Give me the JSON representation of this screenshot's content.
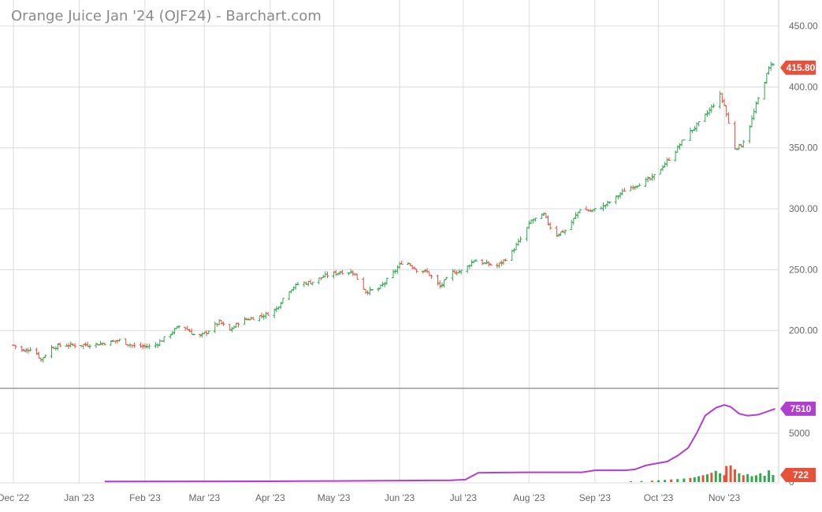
{
  "chart_data": {
    "type": "line",
    "title": "Orange Juice Jan '24 (OJF24) - Barchart.com",
    "price_panel": {
      "type": "ohlc",
      "ylim": [
        150,
        450
      ],
      "yticks": [
        "200.00",
        "250.00",
        "300.00",
        "350.00",
        "400.00",
        "450.00"
      ],
      "last_price": "415.80",
      "grid": true,
      "price_path": [
        [
          "2022-12-01",
          188
        ],
        [
          "2022-12-06",
          183
        ],
        [
          "2022-12-10",
          186
        ],
        [
          "2022-12-14",
          176
        ],
        [
          "2022-12-19",
          186
        ],
        [
          "2022-12-24",
          188
        ],
        [
          "2023-01-02",
          188
        ],
        [
          "2023-01-10",
          189
        ],
        [
          "2023-01-20",
          192
        ],
        [
          "2023-01-27",
          187
        ],
        [
          "2023-02-05",
          187
        ],
        [
          "2023-02-12",
          196
        ],
        [
          "2023-02-18",
          205
        ],
        [
          "2023-02-26",
          194
        ],
        [
          "2023-03-03",
          200
        ],
        [
          "2023-03-08",
          207
        ],
        [
          "2023-03-13",
          200
        ],
        [
          "2023-03-18",
          208
        ],
        [
          "2023-03-23",
          210
        ],
        [
          "2023-03-30",
          213
        ],
        [
          "2023-04-04",
          218
        ],
        [
          "2023-04-09",
          232
        ],
        [
          "2023-04-14",
          238
        ],
        [
          "2023-04-21",
          240
        ],
        [
          "2023-04-27",
          245
        ],
        [
          "2023-05-04",
          248
        ],
        [
          "2023-05-10",
          248
        ],
        [
          "2023-05-16",
          232
        ],
        [
          "2023-05-22",
          234
        ],
        [
          "2023-05-28",
          245
        ],
        [
          "2023-06-03",
          258
        ],
        [
          "2023-06-09",
          250
        ],
        [
          "2023-06-14",
          248
        ],
        [
          "2023-06-20",
          236
        ],
        [
          "2023-06-26",
          248
        ],
        [
          "2023-07-01",
          249
        ],
        [
          "2023-07-06",
          258
        ],
        [
          "2023-07-11",
          255
        ],
        [
          "2023-07-17",
          253
        ],
        [
          "2023-07-23",
          262
        ],
        [
          "2023-07-28",
          275
        ],
        [
          "2023-08-02",
          290
        ],
        [
          "2023-08-08",
          295
        ],
        [
          "2023-08-13",
          278
        ],
        [
          "2023-08-19",
          283
        ],
        [
          "2023-08-25",
          300
        ],
        [
          "2023-08-30",
          298
        ],
        [
          "2023-09-05",
          302
        ],
        [
          "2023-09-10",
          308
        ],
        [
          "2023-09-15",
          315
        ],
        [
          "2023-09-21",
          320
        ],
        [
          "2023-09-28",
          325
        ],
        [
          "2023-10-03",
          335
        ],
        [
          "2023-10-08",
          345
        ],
        [
          "2023-10-14",
          360
        ],
        [
          "2023-10-20",
          370
        ],
        [
          "2023-10-26",
          383
        ],
        [
          "2023-10-30",
          393
        ],
        [
          "2023-11-01",
          385
        ],
        [
          "2023-11-03",
          370
        ],
        [
          "2023-11-06",
          350
        ],
        [
          "2023-11-09",
          352
        ],
        [
          "2023-11-13",
          368
        ],
        [
          "2023-11-16",
          385
        ],
        [
          "2023-11-20",
          405
        ],
        [
          "2023-11-23",
          420
        ],
        [
          "2023-11-25",
          415.8
        ]
      ]
    },
    "volume_panel": {
      "yticks": [
        "5000"
      ],
      "open_interest_last": "7510",
      "volume_last": "722",
      "open_interest_path": [
        [
          "2023-01-13",
          60
        ],
        [
          "2023-04-01",
          80
        ],
        [
          "2023-05-01",
          110
        ],
        [
          "2023-06-25",
          180
        ],
        [
          "2023-07-02",
          250
        ],
        [
          "2023-07-08",
          950
        ],
        [
          "2023-08-01",
          1000
        ],
        [
          "2023-08-26",
          1000
        ],
        [
          "2023-09-01",
          1200
        ],
        [
          "2023-09-15",
          1200
        ],
        [
          "2023-09-20",
          1300
        ],
        [
          "2023-09-25",
          1700
        ],
        [
          "2023-09-30",
          1900
        ],
        [
          "2023-10-05",
          2100
        ],
        [
          "2023-10-10",
          2700
        ],
        [
          "2023-10-15",
          3500
        ],
        [
          "2023-10-19",
          5000
        ],
        [
          "2023-10-23",
          6800
        ],
        [
          "2023-10-28",
          7600
        ],
        [
          "2023-11-01",
          7900
        ],
        [
          "2023-11-04",
          7700
        ],
        [
          "2023-11-08",
          7000
        ],
        [
          "2023-11-12",
          6800
        ],
        [
          "2023-11-17",
          6900
        ],
        [
          "2023-11-21",
          7200
        ],
        [
          "2023-11-25",
          7510
        ]
      ],
      "volume_bars": [
        [
          "2023-09-18",
          80,
          "up"
        ],
        [
          "2023-09-23",
          100,
          "up"
        ],
        [
          "2023-09-28",
          140,
          "down"
        ],
        [
          "2023-10-01",
          180,
          "up"
        ],
        [
          "2023-10-04",
          220,
          "up"
        ],
        [
          "2023-10-07",
          260,
          "down"
        ],
        [
          "2023-10-10",
          300,
          "up"
        ],
        [
          "2023-10-13",
          360,
          "up"
        ],
        [
          "2023-10-16",
          420,
          "down"
        ],
        [
          "2023-10-18",
          500,
          "up"
        ],
        [
          "2023-10-20",
          600,
          "up"
        ],
        [
          "2023-10-22",
          700,
          "down"
        ],
        [
          "2023-10-24",
          800,
          "up"
        ],
        [
          "2023-10-26",
          950,
          "down"
        ],
        [
          "2023-10-28",
          1150,
          "up"
        ],
        [
          "2023-10-30",
          900,
          "up"
        ],
        [
          "2023-11-01",
          700,
          "down"
        ],
        [
          "2023-11-02",
          1650,
          "down"
        ],
        [
          "2023-11-04",
          1700,
          "down"
        ],
        [
          "2023-11-06",
          1300,
          "down"
        ],
        [
          "2023-11-08",
          900,
          "up"
        ],
        [
          "2023-11-10",
          700,
          "down"
        ],
        [
          "2023-11-12",
          800,
          "up"
        ],
        [
          "2023-11-14",
          600,
          "up"
        ],
        [
          "2023-11-16",
          700,
          "up"
        ],
        [
          "2023-11-18",
          900,
          "up"
        ],
        [
          "2023-11-20",
          650,
          "up"
        ],
        [
          "2023-11-22",
          1200,
          "up"
        ],
        [
          "2023-11-24",
          722,
          "up"
        ]
      ]
    },
    "x_axis": {
      "tick_labels": [
        "Dec '22",
        "Jan '23",
        "Feb '23",
        "Mar '23",
        "Apr '23",
        "May '23",
        "Jun '23",
        "Jul '23",
        "Aug '23",
        "Sep '23",
        "Oct '23",
        "Nov '23"
      ],
      "tick_dates": [
        "2022-12-01",
        "2023-01-01",
        "2023-02-01",
        "2023-03-01",
        "2023-04-01",
        "2023-05-01",
        "2023-06-01",
        "2023-07-01",
        "2023-08-01",
        "2023-09-01",
        "2023-10-01",
        "2023-11-01"
      ]
    },
    "colors": {
      "up": "#2fa84f",
      "down": "#e8503a",
      "open_interest": "#b03fd0",
      "grid": "#dcdcdc",
      "axis_text": "#666666",
      "price_badge": "#e8503a",
      "oi_badge": "#b03fd0",
      "volume_badge": "#e8503a"
    }
  }
}
